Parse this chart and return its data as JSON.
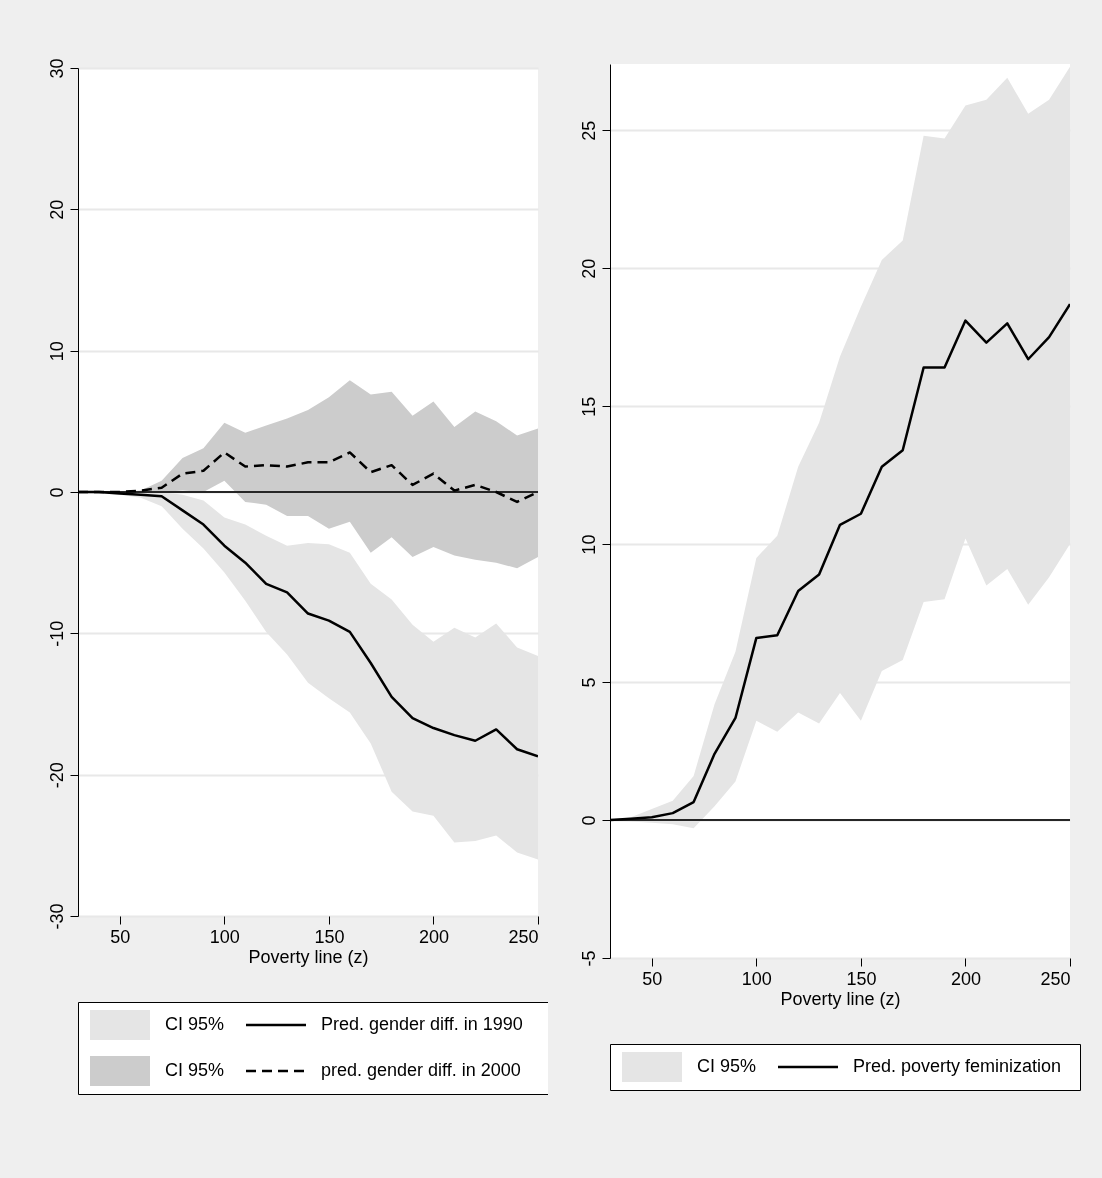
{
  "chart_data": [
    {
      "type": "line",
      "xlabel": "Poverty line (z)",
      "x": [
        30,
        40,
        50,
        60,
        70,
        80,
        90,
        100,
        110,
        120,
        130,
        140,
        150,
        160,
        170,
        180,
        190,
        200,
        210,
        220,
        230,
        240,
        250
      ],
      "xlim": [
        30,
        250
      ],
      "xticks": [
        50,
        100,
        150,
        200,
        250
      ],
      "ylim": [
        -30,
        30
      ],
      "yticks": [
        -30,
        -20,
        -10,
        0,
        10,
        20,
        30
      ],
      "grid": "y",
      "legend": "bottom",
      "marker": "none",
      "annotations": [
        "CI 95%",
        "CI 95%"
      ],
      "ref_lines": [
        {
          "axis": "y",
          "value": 0,
          "color": "#262626"
        }
      ],
      "series": [
        {
          "name": "Pred. gender diff. in 1990",
          "color": "#000000",
          "line_style": "solid",
          "values": [
            0,
            0,
            -0.1,
            -0.2,
            -0.3,
            -1.3,
            -2.3,
            -3.8,
            -5.0,
            -6.5,
            -7.1,
            -8.6,
            -9.1,
            -9.9,
            -12.1,
            -14.5,
            -16.0,
            -16.7,
            -17.2,
            -17.6,
            -16.8,
            -18.2,
            -18.7
          ],
          "lower": [
            0,
            -0.1,
            -0.2,
            -0.4,
            -1.0,
            -2.6,
            -4.0,
            -5.7,
            -7.7,
            -9.9,
            -11.5,
            -13.5,
            -14.6,
            -15.6,
            -17.8,
            -21.2,
            -22.6,
            -22.9,
            -24.8,
            -24.7,
            -24.3,
            -25.5,
            -26.0
          ],
          "upper": [
            0,
            0,
            0,
            0,
            0,
            -0.2,
            -0.6,
            -1.8,
            -2.3,
            -3.1,
            -3.8,
            -3.6,
            -3.7,
            -4.3,
            -6.5,
            -7.6,
            -9.4,
            -10.6,
            -9.6,
            -10.3,
            -9.3,
            -11.0,
            -11.6
          ]
        },
        {
          "name": "pred. gender diff. in 2000",
          "color": "#000000",
          "line_style": "dashed",
          "values": [
            0,
            0,
            0,
            0.1,
            0.3,
            1.3,
            1.5,
            2.8,
            1.8,
            1.9,
            1.8,
            2.1,
            2.1,
            2.8,
            1.4,
            1.9,
            0.5,
            1.3,
            0.1,
            0.5,
            0,
            -0.7,
            0
          ],
          "lower": [
            0,
            0,
            0,
            0,
            0,
            0.1,
            0,
            0.8,
            -0.7,
            -0.9,
            -1.7,
            -1.7,
            -2.6,
            -2.1,
            -4.3,
            -3.2,
            -4.6,
            -3.9,
            -4.5,
            -4.8,
            -5.0,
            -5.4,
            -4.6
          ],
          "upper": [
            0,
            0,
            0,
            0.1,
            0.8,
            2.4,
            3.1,
            4.9,
            4.2,
            4.7,
            5.2,
            5.8,
            6.7,
            7.9,
            6.9,
            7.1,
            5.4,
            6.4,
            4.6,
            5.7,
            5.0,
            4.0,
            4.5
          ]
        }
      ]
    },
    {
      "type": "line",
      "xlabel": "Poverty line (z)",
      "x": [
        30,
        40,
        50,
        60,
        70,
        80,
        90,
        100,
        110,
        120,
        130,
        140,
        150,
        160,
        170,
        180,
        190,
        200,
        210,
        220,
        230,
        240,
        250
      ],
      "xlim": [
        30,
        250
      ],
      "xticks": [
        50,
        100,
        150,
        200,
        250
      ],
      "ylim": [
        -5,
        27.4
      ],
      "yticks": [
        -5,
        0,
        5,
        10,
        15,
        20,
        25
      ],
      "grid": "y",
      "legend": "bottom",
      "marker": "none",
      "annotations": [
        "CI 95%"
      ],
      "ref_lines": [
        {
          "axis": "y",
          "value": 0,
          "color": "#262626"
        }
      ],
      "series": [
        {
          "name": "Pred. poverty feminization",
          "color": "#000000",
          "line_style": "solid",
          "values": [
            0,
            0.05,
            0.1,
            0.25,
            0.65,
            2.4,
            3.7,
            6.6,
            6.7,
            8.3,
            8.9,
            10.7,
            11.1,
            12.8,
            13.4,
            16.4,
            16.4,
            18.1,
            17.3,
            18.0,
            16.7,
            17.5,
            18.7
          ],
          "lower": [
            0,
            -0.05,
            -0.1,
            -0.15,
            -0.3,
            0.5,
            1.4,
            3.6,
            3.2,
            3.9,
            3.5,
            4.6,
            3.6,
            5.4,
            5.8,
            7.9,
            8.0,
            10.2,
            8.5,
            9.1,
            7.8,
            8.8,
            10.0
          ],
          "upper": [
            0,
            0.1,
            0.4,
            0.7,
            1.6,
            4.2,
            6.1,
            9.5,
            10.3,
            12.8,
            14.4,
            16.8,
            18.6,
            20.3,
            21.0,
            24.8,
            24.7,
            25.9,
            26.1,
            26.9,
            25.6,
            26.1,
            27.3
          ]
        }
      ]
    }
  ]
}
